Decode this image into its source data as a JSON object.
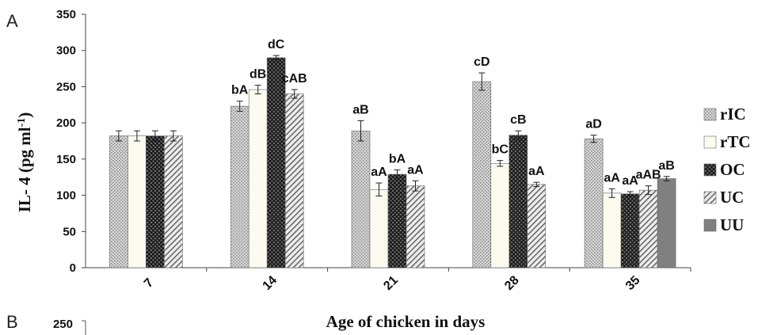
{
  "panels": {
    "top": "A",
    "bottom": "B",
    "bottom_tick": "250"
  },
  "colors": {
    "rIC": "#cfcfcf",
    "rTC": "#fbfbf0",
    "OC": "#2a2a2a",
    "UC": "#e4e4e4",
    "UU": "#808080"
  },
  "chart_data": {
    "type": "bar",
    "xlabel": "Age of chicken in days",
    "ylabel": "IL- 4 (pg ml",
    "ylabel_sup": "-1",
    "ylabel_end": ")",
    "ylim": [
      0,
      350
    ],
    "yticks": [
      0,
      50,
      100,
      150,
      200,
      250,
      300,
      350
    ],
    "grid": false,
    "legend_position": "right",
    "categories": [
      "7",
      "14",
      "21",
      "28",
      "35"
    ],
    "series": [
      {
        "name": "rIC",
        "values": [
          182,
          223,
          189,
          257,
          178
        ],
        "errors": [
          7,
          7,
          14,
          12,
          5
        ],
        "labels": [
          "",
          "bA",
          "aB",
          "cD",
          "aD"
        ]
      },
      {
        "name": "rTC",
        "values": [
          182,
          246,
          108,
          144,
          103
        ],
        "errors": [
          7,
          6,
          9,
          4,
          6
        ],
        "labels": [
          "",
          "dB",
          "aA",
          "bC",
          "aA"
        ]
      },
      {
        "name": "OC",
        "values": [
          182,
          290,
          129,
          183,
          102
        ],
        "errors": [
          7,
          3,
          6,
          6,
          3
        ],
        "labels": [
          "",
          "dC",
          "bA",
          "cB",
          "aA"
        ]
      },
      {
        "name": "UC",
        "values": [
          182,
          240,
          113,
          115,
          107
        ],
        "errors": [
          7,
          6,
          7,
          3,
          6
        ],
        "labels": [
          "",
          "cAB",
          "aA",
          "aA",
          "aAB"
        ]
      },
      {
        "name": "UU",
        "values": [
          null,
          null,
          null,
          null,
          123
        ],
        "errors": [
          null,
          null,
          null,
          null,
          3
        ],
        "labels": [
          "",
          "",
          "",
          "",
          "aB"
        ]
      }
    ]
  }
}
